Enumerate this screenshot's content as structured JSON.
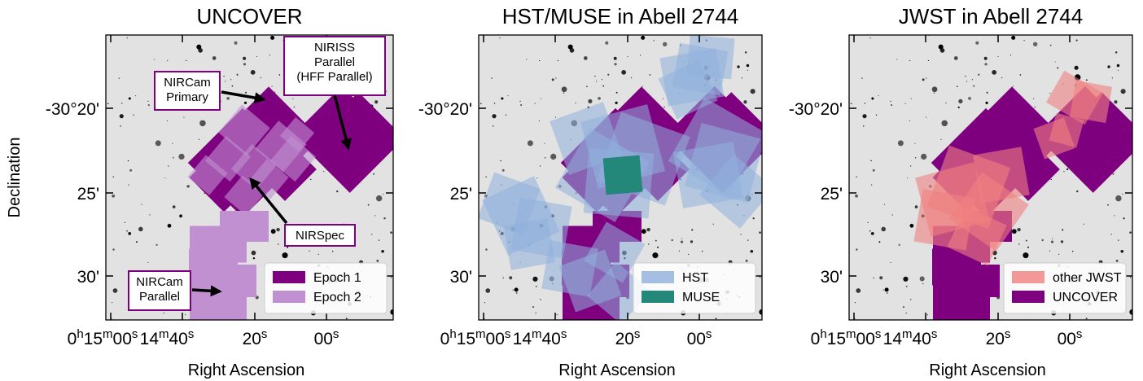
{
  "figure": {
    "ylabel": "Declination",
    "xlabel": "Right Ascension",
    "dec_ticks": [
      "-30°20'",
      "25'",
      "30'"
    ],
    "ra_ticks": [
      "0h15m00s",
      "14m40s",
      "20s",
      "00s"
    ]
  },
  "chart_data": [
    {
      "type": "other",
      "title": "UNCOVER",
      "legend": [
        {
          "label": "Epoch 1",
          "color": "#7f007f"
        },
        {
          "label": "Epoch 2",
          "color": "#c090d0"
        }
      ],
      "annotations": [
        "NIRISS\nParallel\n(HFF Parallel)",
        "NIRCam\nPrimary",
        "NIRSpec",
        "NIRCam\nParallel"
      ],
      "legend_placement": "lower-right"
    },
    {
      "type": "other",
      "title": "HST/MUSE in Abell 2744",
      "legend": [
        {
          "label": "HST",
          "color": "#8fb0dc"
        },
        {
          "label": "MUSE",
          "color": "#23877a"
        }
      ],
      "legend_placement": "lower-right"
    },
    {
      "type": "other",
      "title": "JWST in Abell 2744",
      "legend": [
        {
          "label": "other JWST",
          "color": "#f08080"
        },
        {
          "label": "UNCOVER",
          "color": "#7f007f"
        }
      ],
      "legend_placement": "lower-right"
    }
  ]
}
